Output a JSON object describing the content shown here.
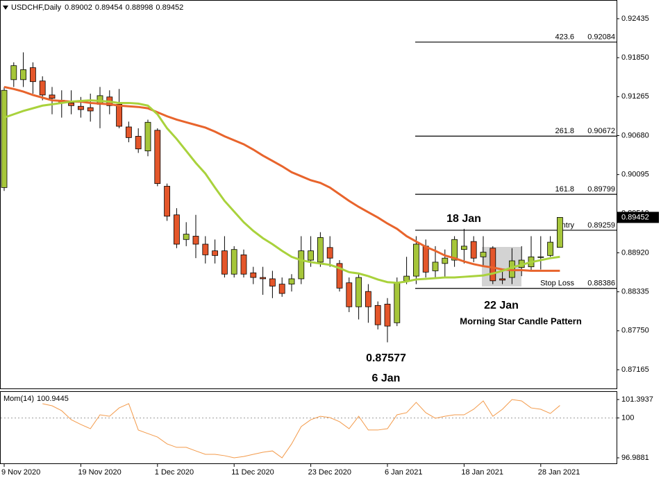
{
  "chart_data": [
    {
      "type": "candlestick",
      "title": "USDCHF,Daily",
      "categories": [
        "9 Nov 2020",
        null,
        null,
        null,
        null,
        null,
        null,
        null,
        "19 Nov 2020",
        null,
        null,
        null,
        null,
        null,
        null,
        null,
        "1 Dec 2020",
        null,
        null,
        null,
        null,
        null,
        null,
        null,
        "11 Dec 2020",
        null,
        null,
        null,
        null,
        null,
        null,
        null,
        "23 Dec 2020",
        null,
        null,
        null,
        null,
        null,
        null,
        null,
        "6 Jan 2021",
        null,
        null,
        null,
        null,
        null,
        null,
        null,
        "18 Jan 2021",
        null,
        null,
        null,
        null,
        null,
        null,
        null,
        "28 Jan 2021",
        null,
        null
      ],
      "open": [
        0.899,
        0.9152,
        0.9152,
        0.917,
        0.915,
        0.9129,
        0.9121,
        0.9117,
        0.9112,
        0.911,
        0.9115,
        0.9126,
        0.9115,
        0.9081,
        0.9067,
        0.9045,
        0.9076,
        0.8992,
        0.8949,
        0.8912,
        0.8917,
        0.8905,
        0.8895,
        0.8895,
        0.886,
        0.8889,
        0.8862,
        0.8855,
        0.8853,
        0.8845,
        0.8845,
        0.8853,
        0.8881,
        0.8878,
        0.89,
        0.8876,
        0.8847,
        0.8811,
        0.8834,
        0.8813,
        0.8815,
        0.8787,
        0.885,
        0.8857,
        0.8902,
        0.8865,
        0.8876,
        0.8881,
        0.8897,
        0.8909,
        0.8886,
        0.8899,
        0.8853,
        0.8855,
        0.887,
        0.8871,
        0.8885,
        0.8888,
        0.89002
      ],
      "high": [
        0.9141,
        0.9178,
        0.9193,
        0.9178,
        0.9157,
        0.9141,
        0.9136,
        0.9136,
        0.9126,
        0.9131,
        0.9141,
        0.9136,
        0.9138,
        0.9089,
        0.9079,
        0.9092,
        0.9079,
        0.8996,
        0.8959,
        0.8938,
        0.8949,
        0.8917,
        0.8912,
        0.8917,
        0.8902,
        0.8897,
        0.8871,
        0.8871,
        0.8865,
        0.8855,
        0.886,
        0.8917,
        0.8917,
        0.8923,
        0.8917,
        0.8881,
        0.8855,
        0.886,
        0.8845,
        0.8819,
        0.8824,
        0.8855,
        0.8886,
        0.8917,
        0.8912,
        0.8902,
        0.8897,
        0.8917,
        0.8928,
        0.8917,
        0.8917,
        0.8902,
        0.8865,
        0.8899,
        0.8902,
        0.8917,
        0.8917,
        0.8917,
        0.89454
      ],
      "low": [
        0.8985,
        0.9141,
        0.9141,
        0.9131,
        0.9121,
        0.91,
        0.9095,
        0.91,
        0.9095,
        0.9089,
        0.9079,
        0.91,
        0.9079,
        0.9058,
        0.9042,
        0.9037,
        0.8992,
        0.894,
        0.8899,
        0.8902,
        0.8884,
        0.8876,
        0.8876,
        0.8855,
        0.8855,
        0.8855,
        0.8845,
        0.8829,
        0.8824,
        0.8826,
        0.8834,
        0.8845,
        0.8871,
        0.8871,
        0.8871,
        0.8834,
        0.8803,
        0.8792,
        0.8787,
        0.8777,
        0.87577,
        0.8782,
        0.8845,
        0.8845,
        0.8855,
        0.8855,
        0.8855,
        0.8871,
        0.8876,
        0.8878,
        0.8871,
        0.8845,
        0.8845,
        0.8845,
        0.8857,
        0.8865,
        0.8867,
        0.8886,
        0.88998
      ],
      "close": [
        0.9136,
        0.9173,
        0.9167,
        0.9149,
        0.9129,
        0.9124,
        0.9117,
        0.9113,
        0.9107,
        0.9105,
        0.9128,
        0.9113,
        0.9082,
        0.9065,
        0.9048,
        0.9088,
        0.8996,
        0.8947,
        0.8905,
        0.892,
        0.8905,
        0.8889,
        0.8888,
        0.886,
        0.8897,
        0.886,
        0.8855,
        0.8853,
        0.8842,
        0.8831,
        0.8853,
        0.8895,
        0.8895,
        0.8915,
        0.8884,
        0.8839,
        0.8811,
        0.8855,
        0.8811,
        0.8784,
        0.8782,
        0.8847,
        0.8857,
        0.8905,
        0.8863,
        0.8878,
        0.8884,
        0.8912,
        0.8902,
        0.8884,
        0.8893,
        0.885,
        0.8851,
        0.888,
        0.8881,
        0.8886,
        0.8886,
        0.8908,
        0.89452
      ],
      "up_color": "#a6c63a",
      "down_color": "#e4562a",
      "overlays": [
        {
          "type": "line",
          "color": "#e8642c",
          "values": [
            0.9141,
            0.9138,
            0.9134,
            0.9129,
            0.9125,
            0.9121,
            0.912,
            0.9119,
            0.9119,
            0.9117,
            0.9116,
            0.9115,
            0.9113,
            0.9112,
            0.9111,
            0.9109,
            0.9103,
            0.9097,
            0.9092,
            0.9088,
            0.9084,
            0.908,
            0.9074,
            0.9067,
            0.9061,
            0.9055,
            0.9047,
            0.9038,
            0.903,
            0.9022,
            0.9013,
            0.9007,
            0.9001,
            0.8997,
            0.899,
            0.898,
            0.897,
            0.8961,
            0.8953,
            0.8945,
            0.8936,
            0.8928,
            0.8917,
            0.8909,
            0.8901,
            0.8895,
            0.8888,
            0.8884,
            0.8879,
            0.8875,
            0.8872,
            0.887,
            0.8867,
            0.8866,
            0.8866,
            0.8865,
            0.8865,
            0.8865,
            0.8865
          ]
        },
        {
          "type": "line",
          "color": "#a9d23c",
          "values": [
            0.9095,
            0.91,
            0.9105,
            0.9109,
            0.9113,
            0.9115,
            0.9117,
            0.9119,
            0.912,
            0.9121,
            0.912,
            0.9119,
            0.9117,
            0.9117,
            0.9116,
            0.9113,
            0.91,
            0.9079,
            0.9063,
            0.9045,
            0.9027,
            0.9011,
            0.899,
            0.897,
            0.8954,
            0.8938,
            0.8925,
            0.8914,
            0.8905,
            0.8895,
            0.8886,
            0.8881,
            0.8878,
            0.8876,
            0.8874,
            0.8869,
            0.8863,
            0.8861,
            0.8857,
            0.8852,
            0.8848,
            0.8847,
            0.8849,
            0.8852,
            0.8853,
            0.8854,
            0.8855,
            0.8855,
            0.8856,
            0.8857,
            0.8858,
            0.8861,
            0.8865,
            0.887,
            0.8874,
            0.8878,
            0.8881,
            0.8884,
            0.8886
          ]
        }
      ],
      "ylim": [
        0.86884,
        0.92695
      ],
      "yticks": [
        0.92435,
        {
          "value": 0.9185,
          "label": "0.91850"
        },
        0.91265,
        {
          "value": 0.9068,
          "label": "0.90680"
        },
        0.90095,
        {
          "value": 0.8951,
          "label": "0.89510"
        },
        {
          "value": 0.8892,
          "label": "0.88920"
        },
        0.88335,
        {
          "value": 0.8775,
          "label": "0.87750"
        },
        0.87165
      ],
      "levels": [
        {
          "label": "423.6",
          "value": 0.92084
        },
        {
          "label": "261.8",
          "value": 0.90672
        },
        {
          "label": "161.8",
          "value": 0.89799
        },
        {
          "label": "Entry",
          "value": 0.89259
        },
        {
          "label": "Stop Loss",
          "value": 0.88386
        }
      ],
      "annotations": [
        {
          "text": "18 Jan"
        },
        {
          "text": "22 Jan"
        },
        {
          "text": "Morning Star Candle Pattern"
        },
        {
          "text": "6 Jan"
        }
      ]
    },
    {
      "type": "line",
      "title": "Mom(14)",
      "color": "#f39a4a",
      "values": [
        null,
        null,
        null,
        null,
        101.08,
        100.92,
        100.55,
        99.87,
        99.51,
        99.19,
        100.24,
        100.13,
        100.76,
        101.08,
        99.09,
        98.82,
        98.56,
        98.04,
        97.78,
        97.78,
        97.51,
        97.25,
        97.25,
        97.15,
        96.99,
        97.09,
        97.25,
        97.41,
        97.51,
        96.99,
        98.04,
        99.35,
        99.87,
        100.13,
        100.03,
        99.72,
        99.19,
        100.13,
        99.09,
        99.09,
        99.19,
        100.24,
        100.4,
        101.18,
        100.4,
        99.98,
        100.13,
        100.24,
        100.24,
        100.66,
        101.29,
        100.13,
        100.66,
        101.39,
        101.29,
        100.76,
        100.66,
        100.34,
        100.9445
      ],
      "ylim": [
        96.57,
        101.97
      ],
      "yticks": [
        96.9881,
        100,
        101.3937
      ],
      "dashed_level": 100
    }
  ]
}
